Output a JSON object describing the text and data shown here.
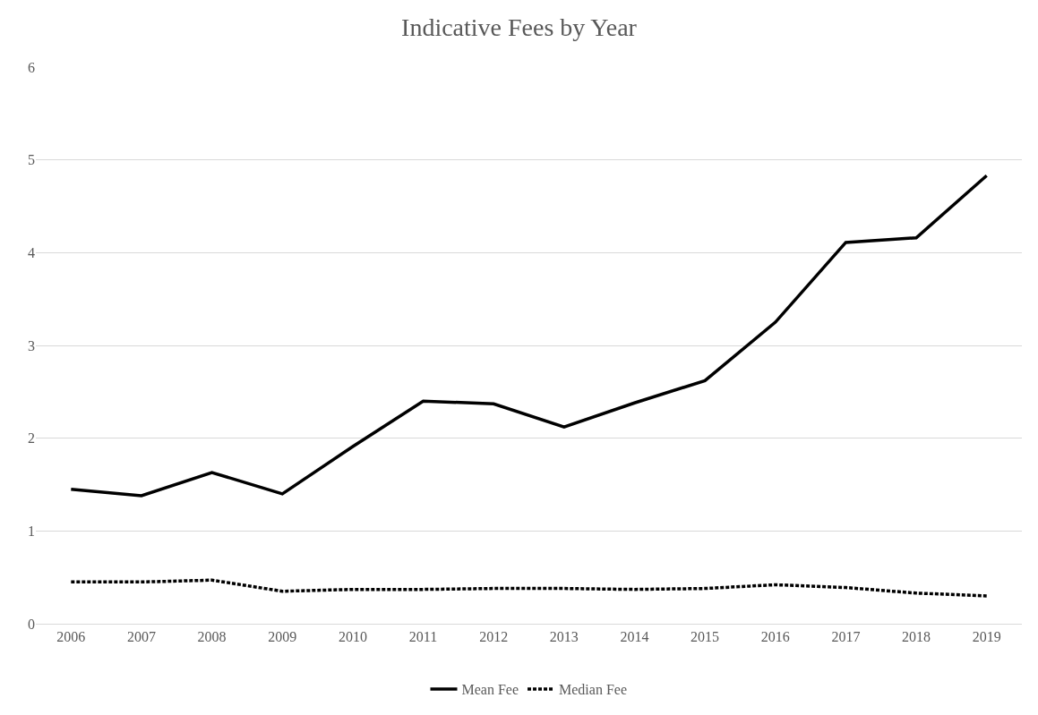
{
  "chart_data": {
    "type": "line",
    "title": "Indicative Fees by Year",
    "categories": [
      "2006",
      "2007",
      "2008",
      "2009",
      "2010",
      "2011",
      "2012",
      "2013",
      "2014",
      "2015",
      "2016",
      "2017",
      "2018",
      "2019"
    ],
    "series": [
      {
        "name": "Mean Fee",
        "color": "#000000",
        "line_style": "solid",
        "values": [
          1.45,
          1.38,
          1.63,
          1.4,
          1.91,
          2.4,
          2.37,
          2.12,
          2.38,
          2.62,
          3.25,
          4.11,
          4.16,
          4.83
        ]
      },
      {
        "name": "Median Fee",
        "color": "#000000",
        "line_style": "dashed",
        "values": [
          0.45,
          0.45,
          0.47,
          0.35,
          0.37,
          0.37,
          0.38,
          0.38,
          0.37,
          0.38,
          0.42,
          0.39,
          0.33,
          0.3
        ]
      }
    ],
    "ylim": [
      0,
      6
    ],
    "yticks": [
      0,
      1,
      2,
      3,
      4,
      5,
      6
    ],
    "grid": "y",
    "legend": "bottom",
    "marker": "none"
  }
}
